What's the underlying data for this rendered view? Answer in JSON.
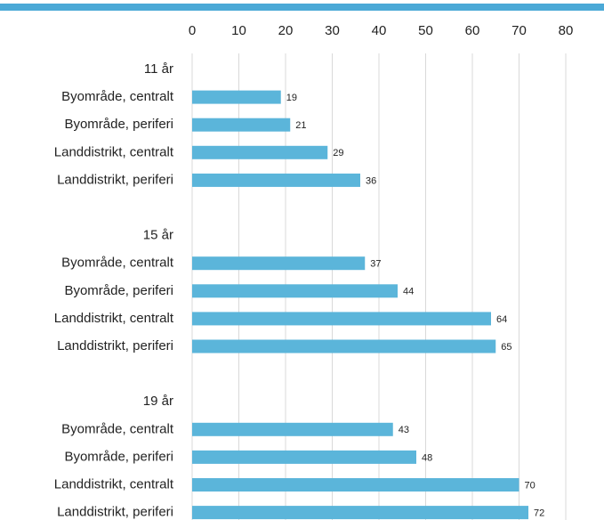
{
  "chart_data": {
    "type": "bar",
    "orientation": "horizontal",
    "categories": [
      "11 år",
      "Byområde, centralt",
      "Byområde, periferi",
      "Landdistrikt, centralt",
      "Landdistrikt, periferi",
      null,
      "15 år",
      "Byområde, centralt",
      "Byområde, periferi",
      "Landdistrikt, centralt",
      "Landdistrikt, periferi",
      null,
      "19 år",
      "Byområde, centralt",
      "Byområde, periferi",
      "Landdistrikt, centralt",
      "Landdistrikt, periferi"
    ],
    "values": [
      null,
      19,
      21,
      29,
      36,
      null,
      null,
      37,
      44,
      64,
      65,
      null,
      null,
      43,
      48,
      70,
      72
    ],
    "color": "#5bb5da",
    "xlim": [
      0,
      80
    ],
    "xticks": [
      0,
      10,
      20,
      30,
      40,
      50,
      60,
      70,
      80
    ],
    "grid": true
  }
}
